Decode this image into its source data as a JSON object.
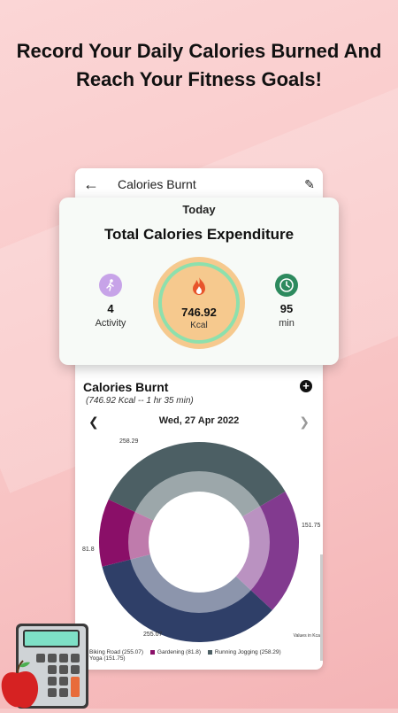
{
  "headline": {
    "line1": "Record Your Daily Calories Burned And",
    "line2": "Reach Your Fitness Goals!"
  },
  "appbar": {
    "title": "Calories Burnt",
    "back_icon": "arrow-left",
    "edit_icon": "pencil"
  },
  "summary": {
    "today": "Today",
    "title": "Total Calories Expenditure",
    "activity": {
      "value": "4",
      "label": "Activity"
    },
    "calories": {
      "value": "746.92",
      "unit": "Kcal"
    },
    "time": {
      "value": "95",
      "label": "min"
    }
  },
  "section": {
    "title": "Calories Burnt",
    "subtitle": "(746.92 Kcal -- 1 hr 35 min)"
  },
  "date_nav": {
    "date": "Wed, 27 Apr 2022"
  },
  "chart_data": {
    "type": "pie",
    "categories": [
      "Running Jogging",
      "Biking Road",
      "Yoga",
      "Gardening"
    ],
    "values": [
      258.29,
      255.07,
      151.75,
      81.8
    ],
    "colors": [
      "#4c5f64",
      "#2f3f68",
      "#823a8f",
      "#8a0f68"
    ],
    "labels": [
      "258.29",
      "255.07",
      "151.75",
      "81.8"
    ],
    "note": "Values in Kcal"
  },
  "legend": [
    {
      "label": "Biking Road (255.07)",
      "color": "#2f3f68"
    },
    {
      "label": "Gardening (81.8)",
      "color": "#8a0f68"
    },
    {
      "label": "Running Jogging (258.29)",
      "color": "#4c5f64"
    },
    {
      "label": "Yoga (151.75)",
      "color": "#823a8f"
    }
  ],
  "colors": {
    "accent_ring": "#8de0ad",
    "ring_fill": "#f6c98e",
    "activity_icon_bg": "#c7a3e8",
    "time_icon_bg": "#2d8a5e"
  }
}
